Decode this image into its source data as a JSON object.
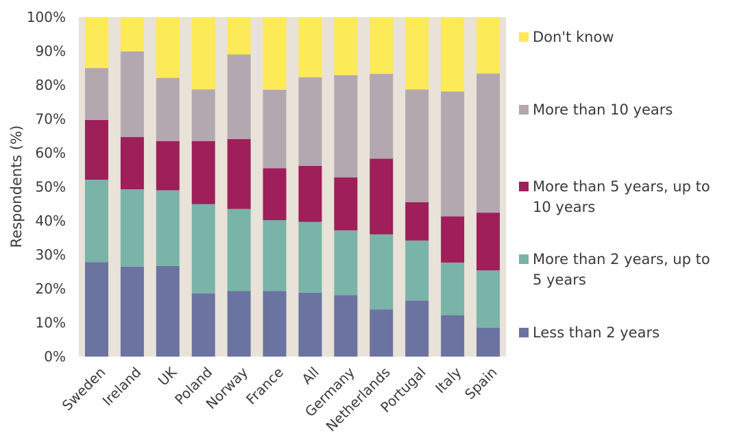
{
  "chart_data": {
    "type": "bar",
    "stacked": true,
    "ylabel": "Respondents (%)",
    "xlabel": "",
    "ylim": [
      0,
      100
    ],
    "yticks": [
      0,
      10,
      20,
      30,
      40,
      50,
      60,
      70,
      80,
      90,
      100
    ],
    "ytick_labels": [
      "0%",
      "10%",
      "20%",
      "30%",
      "40%",
      "50%",
      "60%",
      "70%",
      "80%",
      "90%",
      "100%"
    ],
    "categories": [
      "Sweden",
      "Ireland",
      "UK",
      "Poland",
      "Norway",
      "France",
      "All",
      "Germany",
      "Netherlands",
      "Portugal",
      "Italy",
      "Spain"
    ],
    "series": [
      {
        "name": "Less than 2 years",
        "color": "#6b73a0",
        "values": [
          27.8,
          26.5,
          26.7,
          18.6,
          19.3,
          19.3,
          18.8,
          18.1,
          13.9,
          16.5,
          12.2,
          8.5
        ]
      },
      {
        "name": "More than 2 years, up to 5 years",
        "color": "#7ab3a8",
        "values": [
          24.3,
          22.8,
          22.3,
          26.3,
          24.2,
          20.9,
          20.9,
          19.1,
          22.1,
          17.7,
          15.5,
          16.9
        ]
      },
      {
        "name": "More than 5 years, up to 10 years",
        "color": "#9e1f5a",
        "values": [
          17.6,
          15.4,
          14.5,
          18.6,
          20.6,
          15.3,
          16.5,
          15.6,
          22.3,
          11.3,
          13.6,
          17.0
        ]
      },
      {
        "name": "More than 10 years",
        "color": "#b3a8af",
        "values": [
          15.3,
          25.2,
          18.6,
          15.2,
          24.9,
          23.1,
          26.1,
          30.1,
          25.0,
          33.2,
          36.8,
          41.0
        ]
      },
      {
        "name": "Don't know",
        "color": "#fcea58",
        "values": [
          15.0,
          10.1,
          17.9,
          21.3,
          11.0,
          21.4,
          17.7,
          17.1,
          16.7,
          21.3,
          21.9,
          16.6
        ]
      }
    ],
    "legend": {
      "position": "right",
      "order": [
        "Don't know",
        "More than 10 years",
        "More than 5 years, up to 10 years",
        "More than 2 years, up to 5 years",
        "Less than 2 years"
      ],
      "lines": {
        "Don't know": [
          "Don't know"
        ],
        "More than 10 years": [
          "More than 10 years"
        ],
        "More than 5 years, up to 10 years": [
          "More than 5 years, up to",
          "10 years"
        ],
        "More than 2 years, up to 5 years": [
          "More than 2 years, up to",
          "5 years"
        ],
        "Less than 2 years": [
          "Less than 2 years"
        ]
      }
    },
    "plot_background": "#e8e2d8",
    "grid": false
  }
}
